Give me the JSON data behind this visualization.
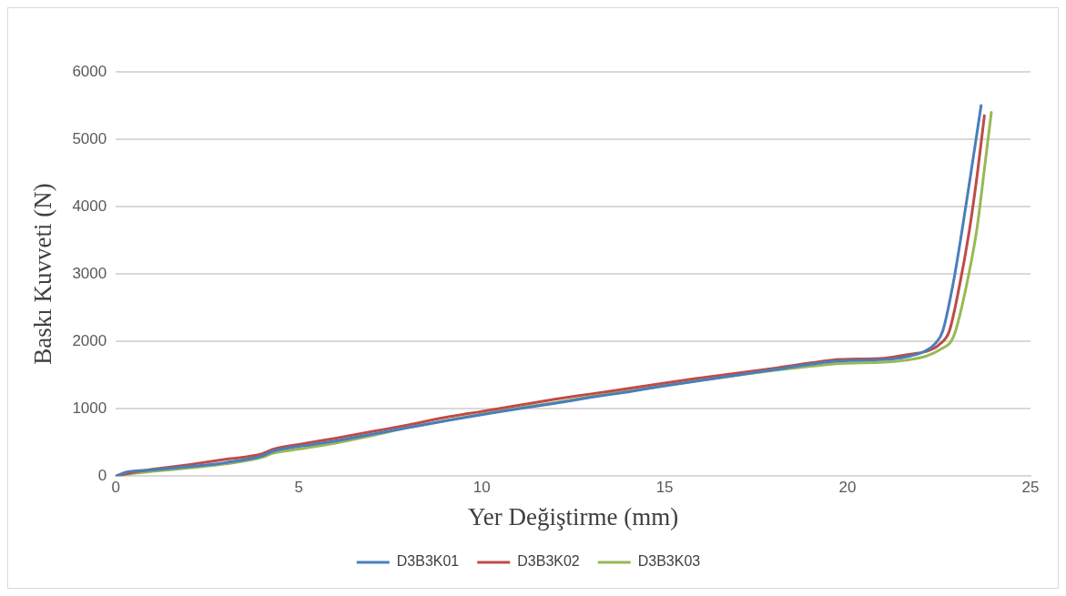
{
  "chart_data": {
    "type": "line",
    "xlabel": "Yer Değiştirme (mm)",
    "ylabel": "Baskı Kuvveti (N)",
    "xlim": [
      0,
      25
    ],
    "xticks": [
      0,
      5,
      10,
      15,
      20,
      25
    ],
    "ylim": [
      0,
      6000
    ],
    "yticks": [
      0,
      1000,
      2000,
      3000,
      4000,
      5000,
      6000
    ],
    "grid": "y",
    "legend": "bottom",
    "marker": "none",
    "line_style": "solid",
    "series": [
      {
        "name": "D3B3K01",
        "color": "#4a7ebb",
        "x": [
          0,
          0.3,
          1,
          2,
          3,
          4,
          4.3,
          5,
          6,
          7,
          8,
          9,
          10,
          11,
          12,
          13,
          14,
          15,
          16,
          17,
          18,
          19,
          19.8,
          21,
          21.6,
          22.1,
          22.4,
          22.6,
          22.9,
          23.13,
          23.4,
          23.65
        ],
        "values": [
          0,
          60,
          90,
          140,
          200,
          300,
          370,
          440,
          520,
          620,
          720,
          820,
          910,
          1000,
          1080,
          1170,
          1250,
          1340,
          1420,
          1500,
          1580,
          1660,
          1710,
          1730,
          1770,
          1850,
          1970,
          2150,
          2900,
          3650,
          4600,
          5500
        ]
      },
      {
        "name": "D3B3K02",
        "color": "#be4b48",
        "x": [
          0,
          0.5,
          1,
          2,
          3,
          4,
          4.3,
          5,
          6,
          7,
          8,
          9,
          10,
          11,
          12,
          13,
          14,
          15,
          16,
          17,
          18,
          19,
          19.8,
          21,
          21.6,
          22.2,
          22.5,
          22.78,
          23.05,
          23.33,
          23.55,
          23.74
        ],
        "values": [
          0,
          60,
          100,
          170,
          250,
          330,
          400,
          470,
          560,
          660,
          760,
          870,
          960,
          1050,
          1140,
          1220,
          1300,
          1380,
          1460,
          1530,
          1600,
          1680,
          1730,
          1750,
          1800,
          1860,
          1950,
          2150,
          2800,
          3650,
          4500,
          5350
        ]
      },
      {
        "name": "D3B3K03",
        "color": "#98b954",
        "x": [
          0,
          0.5,
          1,
          2,
          3,
          4,
          4.3,
          5,
          6,
          7,
          8,
          9,
          10,
          11,
          12,
          13,
          14,
          15,
          16,
          17,
          18,
          19,
          19.8,
          21,
          21.6,
          22.2,
          22.6,
          22.82,
          22.95,
          23.2,
          23.53,
          23.75,
          23.93
        ],
        "values": [
          0,
          40,
          70,
          120,
          180,
          280,
          340,
          400,
          490,
          600,
          720,
          820,
          920,
          1010,
          1090,
          1180,
          1260,
          1340,
          1420,
          1500,
          1570,
          1630,
          1670,
          1690,
          1720,
          1790,
          1900,
          1990,
          2150,
          2700,
          3650,
          4600,
          5400
        ]
      }
    ]
  }
}
